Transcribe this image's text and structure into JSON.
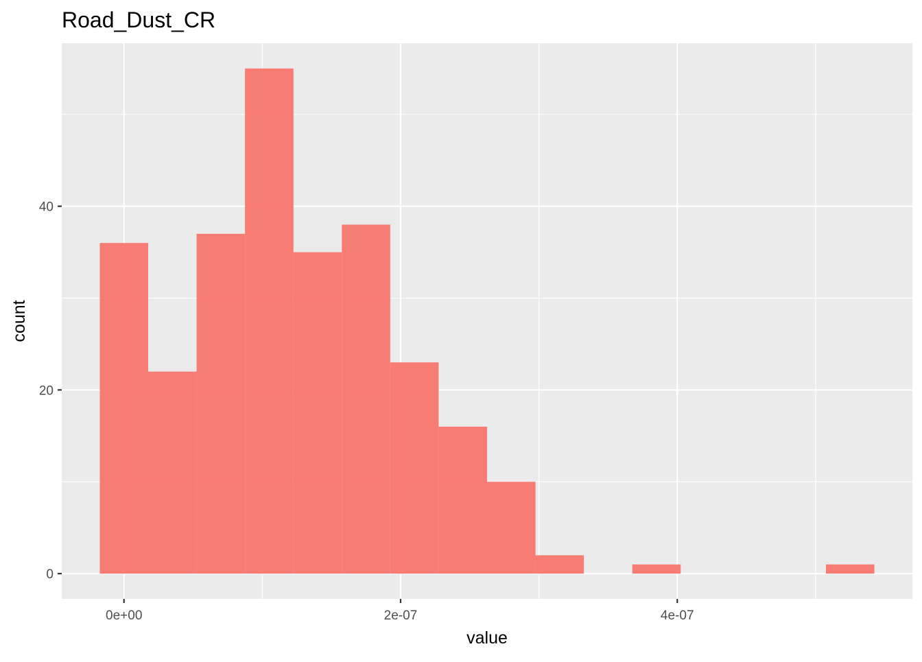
{
  "chart_data": {
    "type": "bar",
    "subtype": "histogram",
    "title": "Road_Dust_CR",
    "xlabel": "value",
    "ylabel": "count",
    "bin_width": 3.5e-08,
    "bins": [
      {
        "x0": -1.75e-08,
        "x1": 1.75e-08,
        "count": 36
      },
      {
        "x0": 1.75e-08,
        "x1": 5.25e-08,
        "count": 22
      },
      {
        "x0": 5.25e-08,
        "x1": 8.75e-08,
        "count": 37
      },
      {
        "x0": 8.75e-08,
        "x1": 1.225e-07,
        "count": 55
      },
      {
        "x0": 1.225e-07,
        "x1": 1.575e-07,
        "count": 35
      },
      {
        "x0": 1.575e-07,
        "x1": 1.925e-07,
        "count": 38
      },
      {
        "x0": 1.925e-07,
        "x1": 2.275e-07,
        "count": 23
      },
      {
        "x0": 2.275e-07,
        "x1": 2.625e-07,
        "count": 16
      },
      {
        "x0": 2.625e-07,
        "x1": 2.975e-07,
        "count": 10
      },
      {
        "x0": 2.975e-07,
        "x1": 3.325e-07,
        "count": 2
      },
      {
        "x0": 3.325e-07,
        "x1": 3.675e-07,
        "count": 0
      },
      {
        "x0": 3.675e-07,
        "x1": 4.025e-07,
        "count": 1
      },
      {
        "x0": 4.025e-07,
        "x1": 4.375e-07,
        "count": 0
      },
      {
        "x0": 4.375e-07,
        "x1": 4.725e-07,
        "count": 0
      },
      {
        "x0": 4.725e-07,
        "x1": 5.075e-07,
        "count": 0
      },
      {
        "x0": 5.075e-07,
        "x1": 5.425e-07,
        "count": 1
      }
    ],
    "xlim": [
      -4.5e-08,
      5.7e-07
    ],
    "ylim": [
      -2.75,
      57.75
    ],
    "x_ticks": [
      {
        "value": 0,
        "label": "0e+00"
      },
      {
        "value": 2e-07,
        "label": "2e-07"
      },
      {
        "value": 4e-07,
        "label": "4e-07"
      }
    ],
    "x_minor_breaks": [
      1e-07,
      3e-07,
      5e-07
    ],
    "y_ticks": [
      {
        "value": 0,
        "label": "0"
      },
      {
        "value": 20,
        "label": "20"
      },
      {
        "value": 40,
        "label": "40"
      }
    ],
    "y_minor_breaks": [
      10,
      30,
      50
    ],
    "grid": true,
    "legend": "none",
    "colors": {
      "bar_fill": "#F8766D",
      "bar_opacity": 0.95,
      "panel_background": "#EBEBEB",
      "grid_major": "#FFFFFF",
      "grid_minor": "#FFFFFF"
    }
  }
}
